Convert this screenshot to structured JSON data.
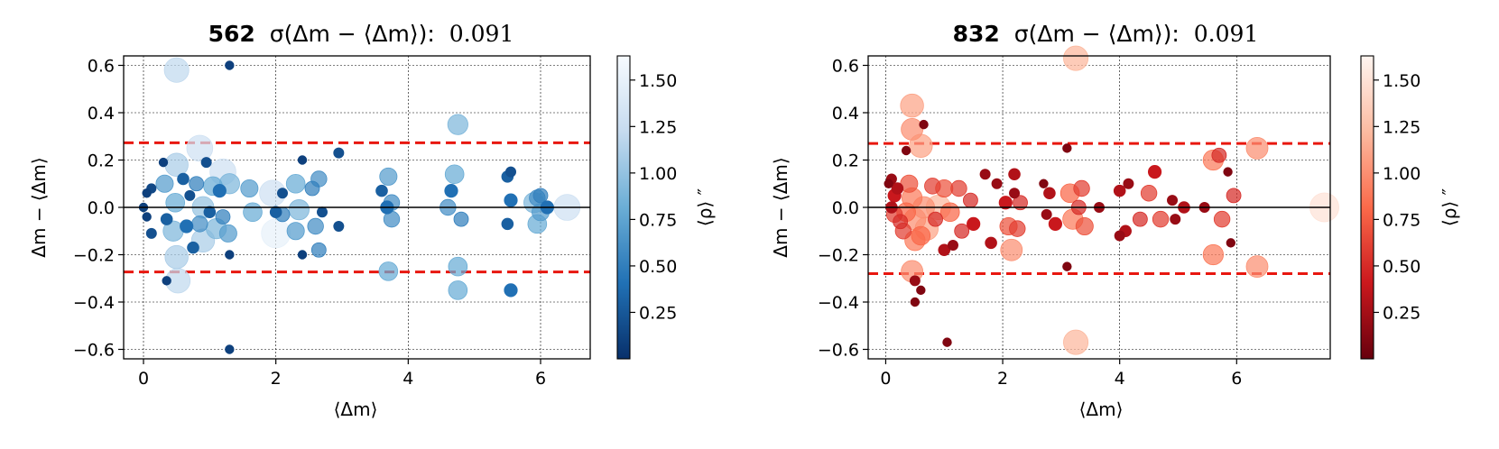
{
  "chart_data": [
    {
      "type": "scatter",
      "title_id": "562",
      "title_stat": "σ(Δm − ⟨Δm⟩):",
      "title_value": "0.091",
      "xlabel": "⟨Δm⟩",
      "ylabel": "Δm − ⟨Δm⟩",
      "colorbar_label": "⟨ρ⟩ ″",
      "colormap": "Blues_r",
      "colormap_stops": [
        "#08306b",
        "#2171b5",
        "#6baed6",
        "#c6dbef",
        "#f7fbff"
      ],
      "xlim": [
        -0.3,
        6.75
      ],
      "ylim": [
        -0.64,
        0.64
      ],
      "xticks": [
        "0",
        "2",
        "4",
        "6"
      ],
      "yticks": [
        "0.6",
        "0.4",
        "0.2",
        "0.0",
        "−0.2",
        "−0.4",
        "−0.6"
      ],
      "colorbar_range": [
        0.0,
        1.63
      ],
      "colorbar_ticks": [
        "0.25",
        "0.50",
        "0.75",
        "1.00",
        "1.25",
        "1.50"
      ],
      "threshold_lines": [
        0.273,
        -0.273
      ],
      "grid": true,
      "points": [
        [
          0.5,
          0.58,
          1.2
        ],
        [
          1.3,
          0.6,
          0.1
        ],
        [
          1.3,
          -0.6,
          0.1
        ],
        [
          0.0,
          0.0,
          0.1
        ],
        [
          0.05,
          0.06,
          0.1
        ],
        [
          0.05,
          -0.04,
          0.1
        ],
        [
          0.12,
          0.08,
          0.15
        ],
        [
          0.12,
          -0.11,
          0.2
        ],
        [
          0.3,
          0.19,
          0.1
        ],
        [
          0.32,
          0.1,
          0.7
        ],
        [
          0.35,
          -0.05,
          0.3
        ],
        [
          0.35,
          -0.31,
          0.1
        ],
        [
          0.5,
          0.18,
          1.1
        ],
        [
          0.48,
          0.02,
          0.8
        ],
        [
          0.45,
          -0.1,
          0.9
        ],
        [
          0.5,
          -0.21,
          1.1
        ],
        [
          0.52,
          -0.31,
          1.2
        ],
        [
          0.6,
          0.12,
          0.3
        ],
        [
          0.65,
          -0.08,
          0.4
        ],
        [
          0.7,
          0.05,
          0.2
        ],
        [
          0.85,
          0.25,
          1.3
        ],
        [
          0.8,
          0.1,
          0.5
        ],
        [
          0.9,
          0.0,
          1.0
        ],
        [
          0.85,
          -0.07,
          0.6
        ],
        [
          0.9,
          -0.14,
          1.1
        ],
        [
          0.75,
          -0.17,
          0.3
        ],
        [
          0.95,
          0.19,
          0.2
        ],
        [
          1.0,
          -0.02,
          0.3
        ],
        [
          1.05,
          0.09,
          0.8
        ],
        [
          1.1,
          -0.09,
          0.9
        ],
        [
          1.15,
          0.07,
          0.4
        ],
        [
          1.2,
          -0.04,
          0.5
        ],
        [
          1.2,
          0.15,
          1.3
        ],
        [
          1.3,
          -0.2,
          0.1
        ],
        [
          1.3,
          0.1,
          0.9
        ],
        [
          1.28,
          -0.11,
          0.7
        ],
        [
          1.6,
          0.08,
          0.7
        ],
        [
          1.65,
          -0.02,
          0.8
        ],
        [
          1.95,
          0.06,
          1.3
        ],
        [
          2.0,
          -0.11,
          1.5
        ],
        [
          2.0,
          -0.02,
          0.3
        ],
        [
          2.1,
          0.06,
          0.2
        ],
        [
          2.1,
          -0.03,
          0.5
        ],
        [
          2.3,
          0.1,
          0.8
        ],
        [
          2.35,
          -0.01,
          0.9
        ],
        [
          2.3,
          -0.1,
          0.7
        ],
        [
          2.4,
          0.2,
          0.1
        ],
        [
          2.4,
          -0.2,
          0.1
        ],
        [
          2.55,
          0.08,
          0.5
        ],
        [
          2.6,
          -0.08,
          0.6
        ],
        [
          2.65,
          0.12,
          0.6
        ],
        [
          2.7,
          -0.02,
          0.2
        ],
        [
          2.65,
          -0.18,
          0.5
        ],
        [
          2.95,
          0.23,
          0.2
        ],
        [
          2.95,
          -0.08,
          0.2
        ],
        [
          3.6,
          0.07,
          0.3
        ],
        [
          3.7,
          0.13,
          0.7
        ],
        [
          3.75,
          0.02,
          0.6
        ],
        [
          3.75,
          -0.05,
          0.6
        ],
        [
          3.7,
          -0.27,
          0.8
        ],
        [
          3.68,
          0.0,
          0.4
        ],
        [
          4.6,
          0.0,
          0.6
        ],
        [
          4.7,
          0.14,
          0.8
        ],
        [
          4.75,
          0.35,
          0.9
        ],
        [
          4.75,
          -0.25,
          0.8
        ],
        [
          4.75,
          -0.35,
          0.8
        ],
        [
          4.8,
          -0.05,
          0.5
        ],
        [
          4.65,
          0.07,
          0.4
        ],
        [
          5.5,
          0.13,
          0.3
        ],
        [
          5.55,
          0.15,
          0.2
        ],
        [
          5.5,
          -0.07,
          0.3
        ],
        [
          5.55,
          -0.35,
          0.4
        ],
        [
          5.55,
          0.03,
          0.4
        ],
        [
          5.9,
          0.02,
          0.9
        ],
        [
          5.95,
          -0.07,
          0.8
        ],
        [
          5.95,
          0.04,
          0.6
        ],
        [
          6.0,
          -0.02,
          0.7
        ],
        [
          6.0,
          0.05,
          0.5
        ],
        [
          6.1,
          0.0,
          0.4
        ],
        [
          6.4,
          0.0,
          1.3
        ]
      ]
    },
    {
      "type": "scatter",
      "title_id": "832",
      "title_stat": "σ(Δm − ⟨Δm⟩):",
      "title_value": "0.091",
      "xlabel": "⟨Δm⟩",
      "ylabel": "Δm − ⟨Δm⟩",
      "colorbar_label": "⟨ρ⟩ ″",
      "colormap": "Reds_r",
      "colormap_stops": [
        "#67000d",
        "#cb181d",
        "#fb6a4a",
        "#fcbba1",
        "#fff5f0"
      ],
      "xlim": [
        -0.3,
        7.6
      ],
      "ylim": [
        -0.64,
        0.64
      ],
      "xticks": [
        "0",
        "2",
        "4",
        "6"
      ],
      "yticks": [
        "0.6",
        "0.4",
        "0.2",
        "0.0",
        "−0.2",
        "−0.4",
        "−0.6"
      ],
      "colorbar_range": [
        0.0,
        1.63
      ],
      "colorbar_ticks": [
        "0.25",
        "0.50",
        "0.75",
        "1.00",
        "1.25",
        "1.50"
      ],
      "threshold_lines": [
        0.27,
        -0.28
      ],
      "grid": true,
      "points": [
        [
          3.25,
          0.63,
          1.2
        ],
        [
          3.25,
          -0.57,
          1.2
        ],
        [
          1.05,
          -0.57,
          0.1
        ],
        [
          0.35,
          0.24,
          0.1
        ],
        [
          0.45,
          0.43,
          1.1
        ],
        [
          0.45,
          0.33,
          1.0
        ],
        [
          0.65,
          0.35,
          0.1
        ],
        [
          0.6,
          0.26,
          1.1
        ],
        [
          0.05,
          0.1,
          0.1
        ],
        [
          0.1,
          0.12,
          0.2
        ],
        [
          0.1,
          0.0,
          0.3
        ],
        [
          0.15,
          -0.03,
          0.6
        ],
        [
          0.15,
          0.05,
          0.4
        ],
        [
          0.2,
          0.08,
          0.3
        ],
        [
          0.25,
          -0.06,
          0.5
        ],
        [
          0.3,
          -0.1,
          0.6
        ],
        [
          0.35,
          -0.02,
          0.8
        ],
        [
          0.4,
          0.1,
          0.7
        ],
        [
          0.45,
          0.04,
          0.9
        ],
        [
          0.5,
          -0.05,
          1.0
        ],
        [
          0.5,
          -0.14,
          0.9
        ],
        [
          0.45,
          -0.27,
          1.0
        ],
        [
          0.5,
          -0.31,
          0.2
        ],
        [
          0.5,
          -0.4,
          0.1
        ],
        [
          0.6,
          -0.35,
          0.1
        ],
        [
          0.6,
          -0.12,
          0.8
        ],
        [
          0.7,
          -0.09,
          1.1
        ],
        [
          0.65,
          0.0,
          1.0
        ],
        [
          0.8,
          0.09,
          0.6
        ],
        [
          0.85,
          -0.05,
          0.5
        ],
        [
          0.9,
          0.0,
          1.2
        ],
        [
          1.0,
          -0.18,
          0.3
        ],
        [
          1.0,
          0.08,
          0.7
        ],
        [
          1.1,
          -0.02,
          0.8
        ],
        [
          1.15,
          -0.16,
          0.2
        ],
        [
          1.25,
          0.08,
          0.6
        ],
        [
          1.3,
          -0.1,
          0.5
        ],
        [
          1.45,
          0.03,
          0.5
        ],
        [
          1.5,
          -0.07,
          0.4
        ],
        [
          1.7,
          0.14,
          0.2
        ],
        [
          1.8,
          -0.15,
          0.3
        ],
        [
          1.9,
          0.1,
          0.2
        ],
        [
          2.05,
          0.02,
          0.4
        ],
        [
          2.1,
          -0.08,
          0.7
        ],
        [
          2.15,
          -0.18,
          1.0
        ],
        [
          2.2,
          0.14,
          0.3
        ],
        [
          2.2,
          0.06,
          0.2
        ],
        [
          2.25,
          -0.09,
          0.6
        ],
        [
          2.3,
          0.02,
          0.5
        ],
        [
          2.7,
          0.1,
          0.1
        ],
        [
          2.75,
          -0.03,
          0.2
        ],
        [
          2.8,
          0.06,
          0.3
        ],
        [
          2.9,
          -0.07,
          0.4
        ],
        [
          3.1,
          0.25,
          0.1
        ],
        [
          3.1,
          -0.25,
          0.1
        ],
        [
          3.15,
          0.06,
          0.8
        ],
        [
          3.2,
          -0.05,
          0.9
        ],
        [
          3.3,
          0.0,
          0.5
        ],
        [
          3.35,
          0.08,
          0.6
        ],
        [
          3.4,
          -0.08,
          0.7
        ],
        [
          3.65,
          0.0,
          0.2
        ],
        [
          4.0,
          0.07,
          0.3
        ],
        [
          4.0,
          -0.12,
          0.2
        ],
        [
          4.1,
          -0.1,
          0.3
        ],
        [
          4.15,
          0.1,
          0.2
        ],
        [
          4.35,
          -0.05,
          0.5
        ],
        [
          4.5,
          0.06,
          0.6
        ],
        [
          4.6,
          0.15,
          0.4
        ],
        [
          4.7,
          -0.05,
          0.6
        ],
        [
          4.9,
          0.03,
          0.2
        ],
        [
          4.95,
          -0.05,
          0.2
        ],
        [
          5.1,
          0.0,
          0.3
        ],
        [
          5.45,
          0.0,
          0.2
        ],
        [
          5.6,
          0.2,
          0.9
        ],
        [
          5.6,
          -0.2,
          0.9
        ],
        [
          5.7,
          0.22,
          0.5
        ],
        [
          5.75,
          -0.05,
          0.6
        ],
        [
          5.85,
          0.15,
          0.1
        ],
        [
          5.9,
          -0.15,
          0.1
        ],
        [
          5.95,
          0.05,
          0.5
        ],
        [
          6.35,
          0.25,
          1.0
        ],
        [
          6.35,
          -0.25,
          1.0
        ],
        [
          7.5,
          0.0,
          1.5
        ]
      ]
    }
  ]
}
